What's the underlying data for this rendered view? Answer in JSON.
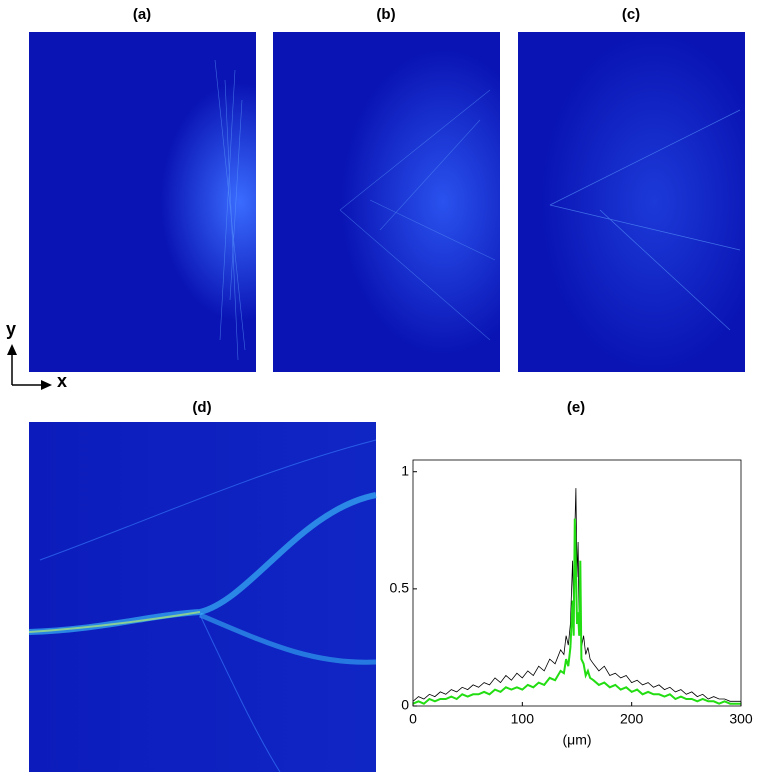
{
  "panels": [
    {
      "label": "(a)"
    },
    {
      "label": "(b)"
    },
    {
      "label": "(c)"
    },
    {
      "label": "(d)"
    }
  ],
  "axes_indicator": {
    "y": "y",
    "x": "x"
  },
  "chart_data": {
    "type": "line",
    "title": "(e)",
    "x_label": "(μm)",
    "x": [
      0,
      5,
      10,
      15,
      20,
      25,
      30,
      35,
      40,
      45,
      50,
      55,
      60,
      65,
      70,
      75,
      80,
      85,
      90,
      95,
      100,
      105,
      110,
      115,
      120,
      125,
      130,
      135,
      138,
      140,
      142,
      144,
      146,
      147,
      148,
      149,
      150,
      151,
      152,
      153,
      154,
      156,
      158,
      160,
      162,
      165,
      170,
      175,
      180,
      185,
      190,
      195,
      200,
      205,
      210,
      215,
      220,
      225,
      230,
      235,
      240,
      245,
      250,
      255,
      260,
      265,
      270,
      275,
      280,
      285,
      290,
      295,
      300
    ],
    "series": [
      {
        "color": "#000000",
        "values": [
          0.02,
          0.04,
          0.03,
          0.05,
          0.04,
          0.06,
          0.05,
          0.07,
          0.06,
          0.08,
          0.07,
          0.09,
          0.08,
          0.1,
          0.09,
          0.12,
          0.1,
          0.13,
          0.11,
          0.14,
          0.12,
          0.15,
          0.13,
          0.17,
          0.15,
          0.2,
          0.18,
          0.24,
          0.22,
          0.3,
          0.26,
          0.35,
          0.62,
          0.4,
          0.75,
          0.93,
          0.55,
          0.7,
          0.3,
          0.5,
          0.25,
          0.3,
          0.22,
          0.25,
          0.2,
          0.18,
          0.15,
          0.17,
          0.13,
          0.14,
          0.12,
          0.13,
          0.1,
          0.11,
          0.09,
          0.1,
          0.08,
          0.09,
          0.07,
          0.08,
          0.06,
          0.07,
          0.05,
          0.06,
          0.04,
          0.05,
          0.03,
          0.04,
          0.03,
          0.03,
          0.02,
          0.02,
          0.02
        ]
      },
      {
        "color": "#22dd11",
        "values": [
          0.01,
          0.02,
          0.01,
          0.03,
          0.02,
          0.03,
          0.03,
          0.04,
          0.03,
          0.05,
          0.04,
          0.05,
          0.05,
          0.06,
          0.05,
          0.07,
          0.06,
          0.08,
          0.07,
          0.08,
          0.07,
          0.09,
          0.08,
          0.1,
          0.09,
          0.12,
          0.11,
          0.15,
          0.14,
          0.2,
          0.17,
          0.25,
          0.45,
          0.3,
          0.8,
          0.6,
          0.35,
          0.4,
          0.3,
          0.62,
          0.2,
          0.18,
          0.13,
          0.15,
          0.12,
          0.11,
          0.09,
          0.1,
          0.08,
          0.09,
          0.07,
          0.08,
          0.06,
          0.07,
          0.05,
          0.06,
          0.05,
          0.05,
          0.04,
          0.05,
          0.03,
          0.04,
          0.03,
          0.03,
          0.02,
          0.03,
          0.02,
          0.02,
          0.01,
          0.02,
          0.01,
          0.01,
          0.01
        ]
      }
    ],
    "xlim": [
      0,
      300
    ],
    "ylim": [
      0,
      1.05
    ],
    "xticks": [
      0,
      100,
      200,
      300
    ],
    "yticks": [
      0,
      0.5,
      1
    ]
  }
}
